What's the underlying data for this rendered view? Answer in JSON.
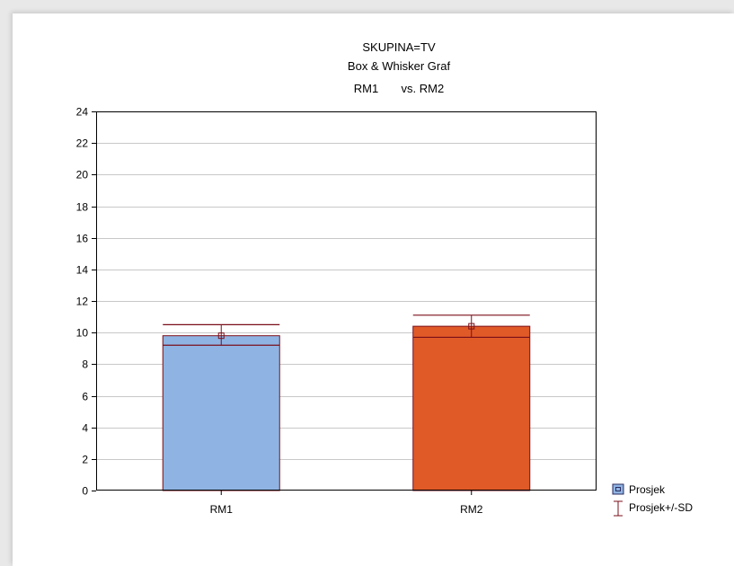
{
  "chart_data": {
    "type": "bar",
    "title_lines": [
      "SKUPINA=TV",
      "Box & Whisker Graf",
      "RM1       vs. RM2"
    ],
    "categories": [
      "RM1",
      "RM2"
    ],
    "series": [
      {
        "name": "Prosjek",
        "values": [
          9.8,
          10.4
        ],
        "sd_lower": [
          9.2,
          9.7
        ],
        "sd_upper": [
          10.5,
          11.1
        ]
      }
    ],
    "bar_colors": [
      "#8fb4e3",
      "#e05a28"
    ],
    "outline_color": "#7a0f1a",
    "ylim": [
      0,
      24
    ],
    "yticks": [
      0,
      2,
      4,
      6,
      8,
      10,
      12,
      14,
      16,
      18,
      20,
      22,
      24
    ],
    "grid": true,
    "legend": {
      "position": "bottom-right",
      "items": [
        {
          "label": "Prosjek",
          "symbol": "square"
        },
        {
          "label": "Prosjek+/-SD",
          "symbol": "whisker"
        }
      ]
    }
  }
}
